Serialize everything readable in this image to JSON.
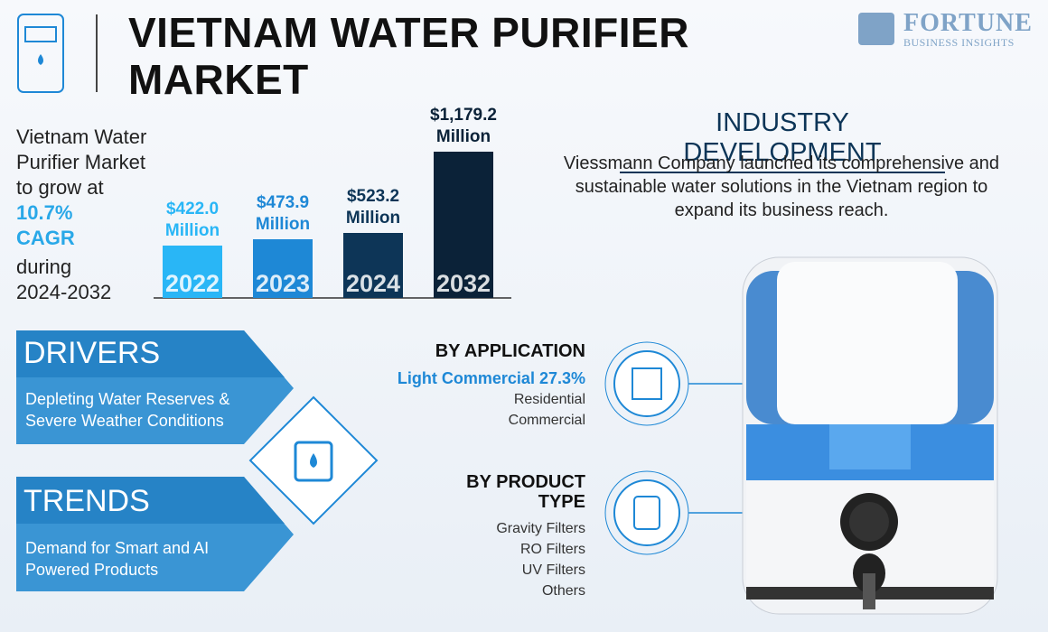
{
  "header": {
    "title": "VIETNAM WATER PURIFIER MARKET",
    "logo_name": "FORTUNE",
    "logo_sub": "BUSINESS INSIGHTS"
  },
  "summary": {
    "intro": "Vietnam Water Purifier Market to grow at",
    "cagr": "10.7% CAGR",
    "period": "during 2024-2032"
  },
  "chart_data": {
    "type": "bar",
    "categories": [
      "2022",
      "2023",
      "2024",
      "2032"
    ],
    "values": [
      422.0,
      473.9,
      523.2,
      1179.2
    ],
    "value_labels": [
      "$422.0 Million",
      "$473.9 Million",
      "$523.2 Million",
      "$1,179.2 Million"
    ],
    "colors": [
      "#29b6f6",
      "#1e88d6",
      "#0d3557",
      "#0b2238"
    ],
    "label_colors": [
      "#29b6f6",
      "#1e88d6",
      "#0d3557",
      "#0b2238"
    ],
    "ylim": [
      0,
      1200
    ]
  },
  "industry": {
    "title": "INDUSTRY DEVELOPMENT",
    "text": "Viessmann Company launched its comprehensive and sustainable water solutions in the Vietnam region to expand its business reach."
  },
  "drivers": {
    "title": "DRIVERS",
    "text": "Depleting Water Reserves & Severe Weather Conditions"
  },
  "trends": {
    "title": "TRENDS",
    "text": "Demand for Smart and AI Powered Products"
  },
  "application": {
    "title": "BY APPLICATION",
    "items": [
      "Light Commercial 27.3%",
      "Residential",
      "Commercial"
    ]
  },
  "product": {
    "title": "BY PRODUCT TYPE",
    "items": [
      "Gravity Filters",
      "RO Filters",
      "UV Filters",
      "Others"
    ]
  }
}
